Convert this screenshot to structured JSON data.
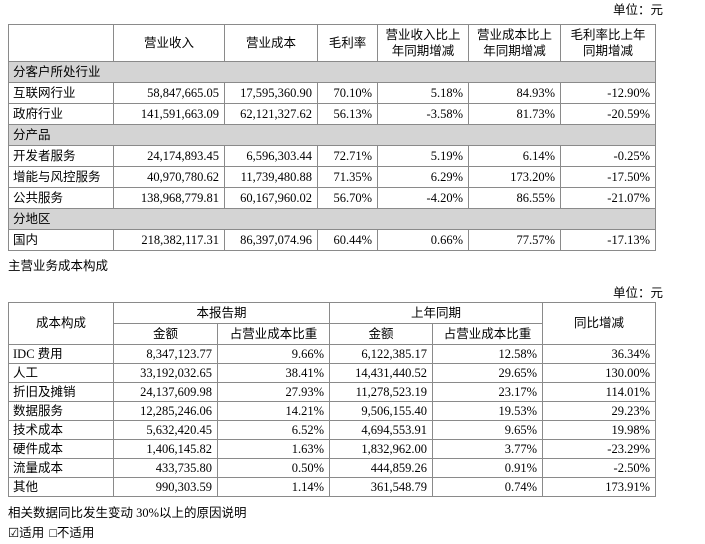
{
  "unit_label": "单位：元",
  "table1": {
    "headers": [
      "营业收入",
      "营业成本",
      "毛利率",
      "营业收入比上年同期增减",
      "营业成本比上年同期增减",
      "毛利率比上年同期增减"
    ],
    "sections": [
      {
        "label": "分客户所处行业",
        "rows": [
          {
            "label": "互联网行业",
            "values": [
              "58,847,665.05",
              "17,595,360.90",
              "70.10%",
              "5.18%",
              "84.93%",
              "-12.90%"
            ]
          },
          {
            "label": "政府行业",
            "values": [
              "141,591,663.09",
              "62,121,327.62",
              "56.13%",
              "-3.58%",
              "81.73%",
              "-20.59%"
            ]
          }
        ]
      },
      {
        "label": "分产品",
        "rows": [
          {
            "label": "开发者服务",
            "values": [
              "24,174,893.45",
              "6,596,303.44",
              "72.71%",
              "5.19%",
              "6.14%",
              "-0.25%"
            ]
          },
          {
            "label": "增能与风控服务",
            "values": [
              "40,970,780.62",
              "11,739,480.88",
              "71.35%",
              "6.29%",
              "173.20%",
              "-17.50%"
            ]
          },
          {
            "label": "公共服务",
            "values": [
              "138,968,779.81",
              "60,167,960.02",
              "56.70%",
              "-4.20%",
              "86.55%",
              "-21.07%"
            ]
          }
        ]
      },
      {
        "label": "分地区",
        "rows": [
          {
            "label": "国内",
            "values": [
              "218,382,117.31",
              "86,397,074.96",
              "60.44%",
              "0.66%",
              "77.57%",
              "-17.13%"
            ]
          }
        ]
      }
    ]
  },
  "section_title": "主营业务成本构成",
  "table2": {
    "headers": {
      "cost_structure": "成本构成",
      "current_period": "本报告期",
      "prior_period": "上年同期",
      "yoy": "同比增减",
      "amount": "金额",
      "ratio": "占营业成本比重"
    },
    "rows": [
      {
        "label": "IDC 费用",
        "values": [
          "8,347,123.77",
          "9.66%",
          "6,122,385.17",
          "12.58%",
          "36.34%"
        ]
      },
      {
        "label": "人工",
        "values": [
          "33,192,032.65",
          "38.41%",
          "14,431,440.52",
          "29.65%",
          "130.00%"
        ]
      },
      {
        "label": "折旧及摊销",
        "values": [
          "24,137,609.98",
          "27.93%",
          "11,278,523.19",
          "23.17%",
          "114.01%"
        ]
      },
      {
        "label": "数据服务",
        "values": [
          "12,285,246.06",
          "14.21%",
          "9,506,155.40",
          "19.53%",
          "29.23%"
        ]
      },
      {
        "label": "技术成本",
        "values": [
          "5,632,420.45",
          "6.52%",
          "4,694,553.91",
          "9.65%",
          "19.98%"
        ]
      },
      {
        "label": "硬件成本",
        "values": [
          "1,406,145.82",
          "1.63%",
          "1,832,962.00",
          "3.77%",
          "-23.29%"
        ]
      },
      {
        "label": "流量成本",
        "values": [
          "433,735.80",
          "0.50%",
          "444,859.26",
          "0.91%",
          "-2.50%"
        ]
      },
      {
        "label": "其他",
        "values": [
          "990,303.59",
          "1.14%",
          "361,548.79",
          "0.74%",
          "173.91%"
        ]
      }
    ]
  },
  "notes": {
    "reason": "相关数据同比发生变动 30%以上的原因说明",
    "applicable": "☑适用",
    "not_applicable": "□不适用"
  }
}
